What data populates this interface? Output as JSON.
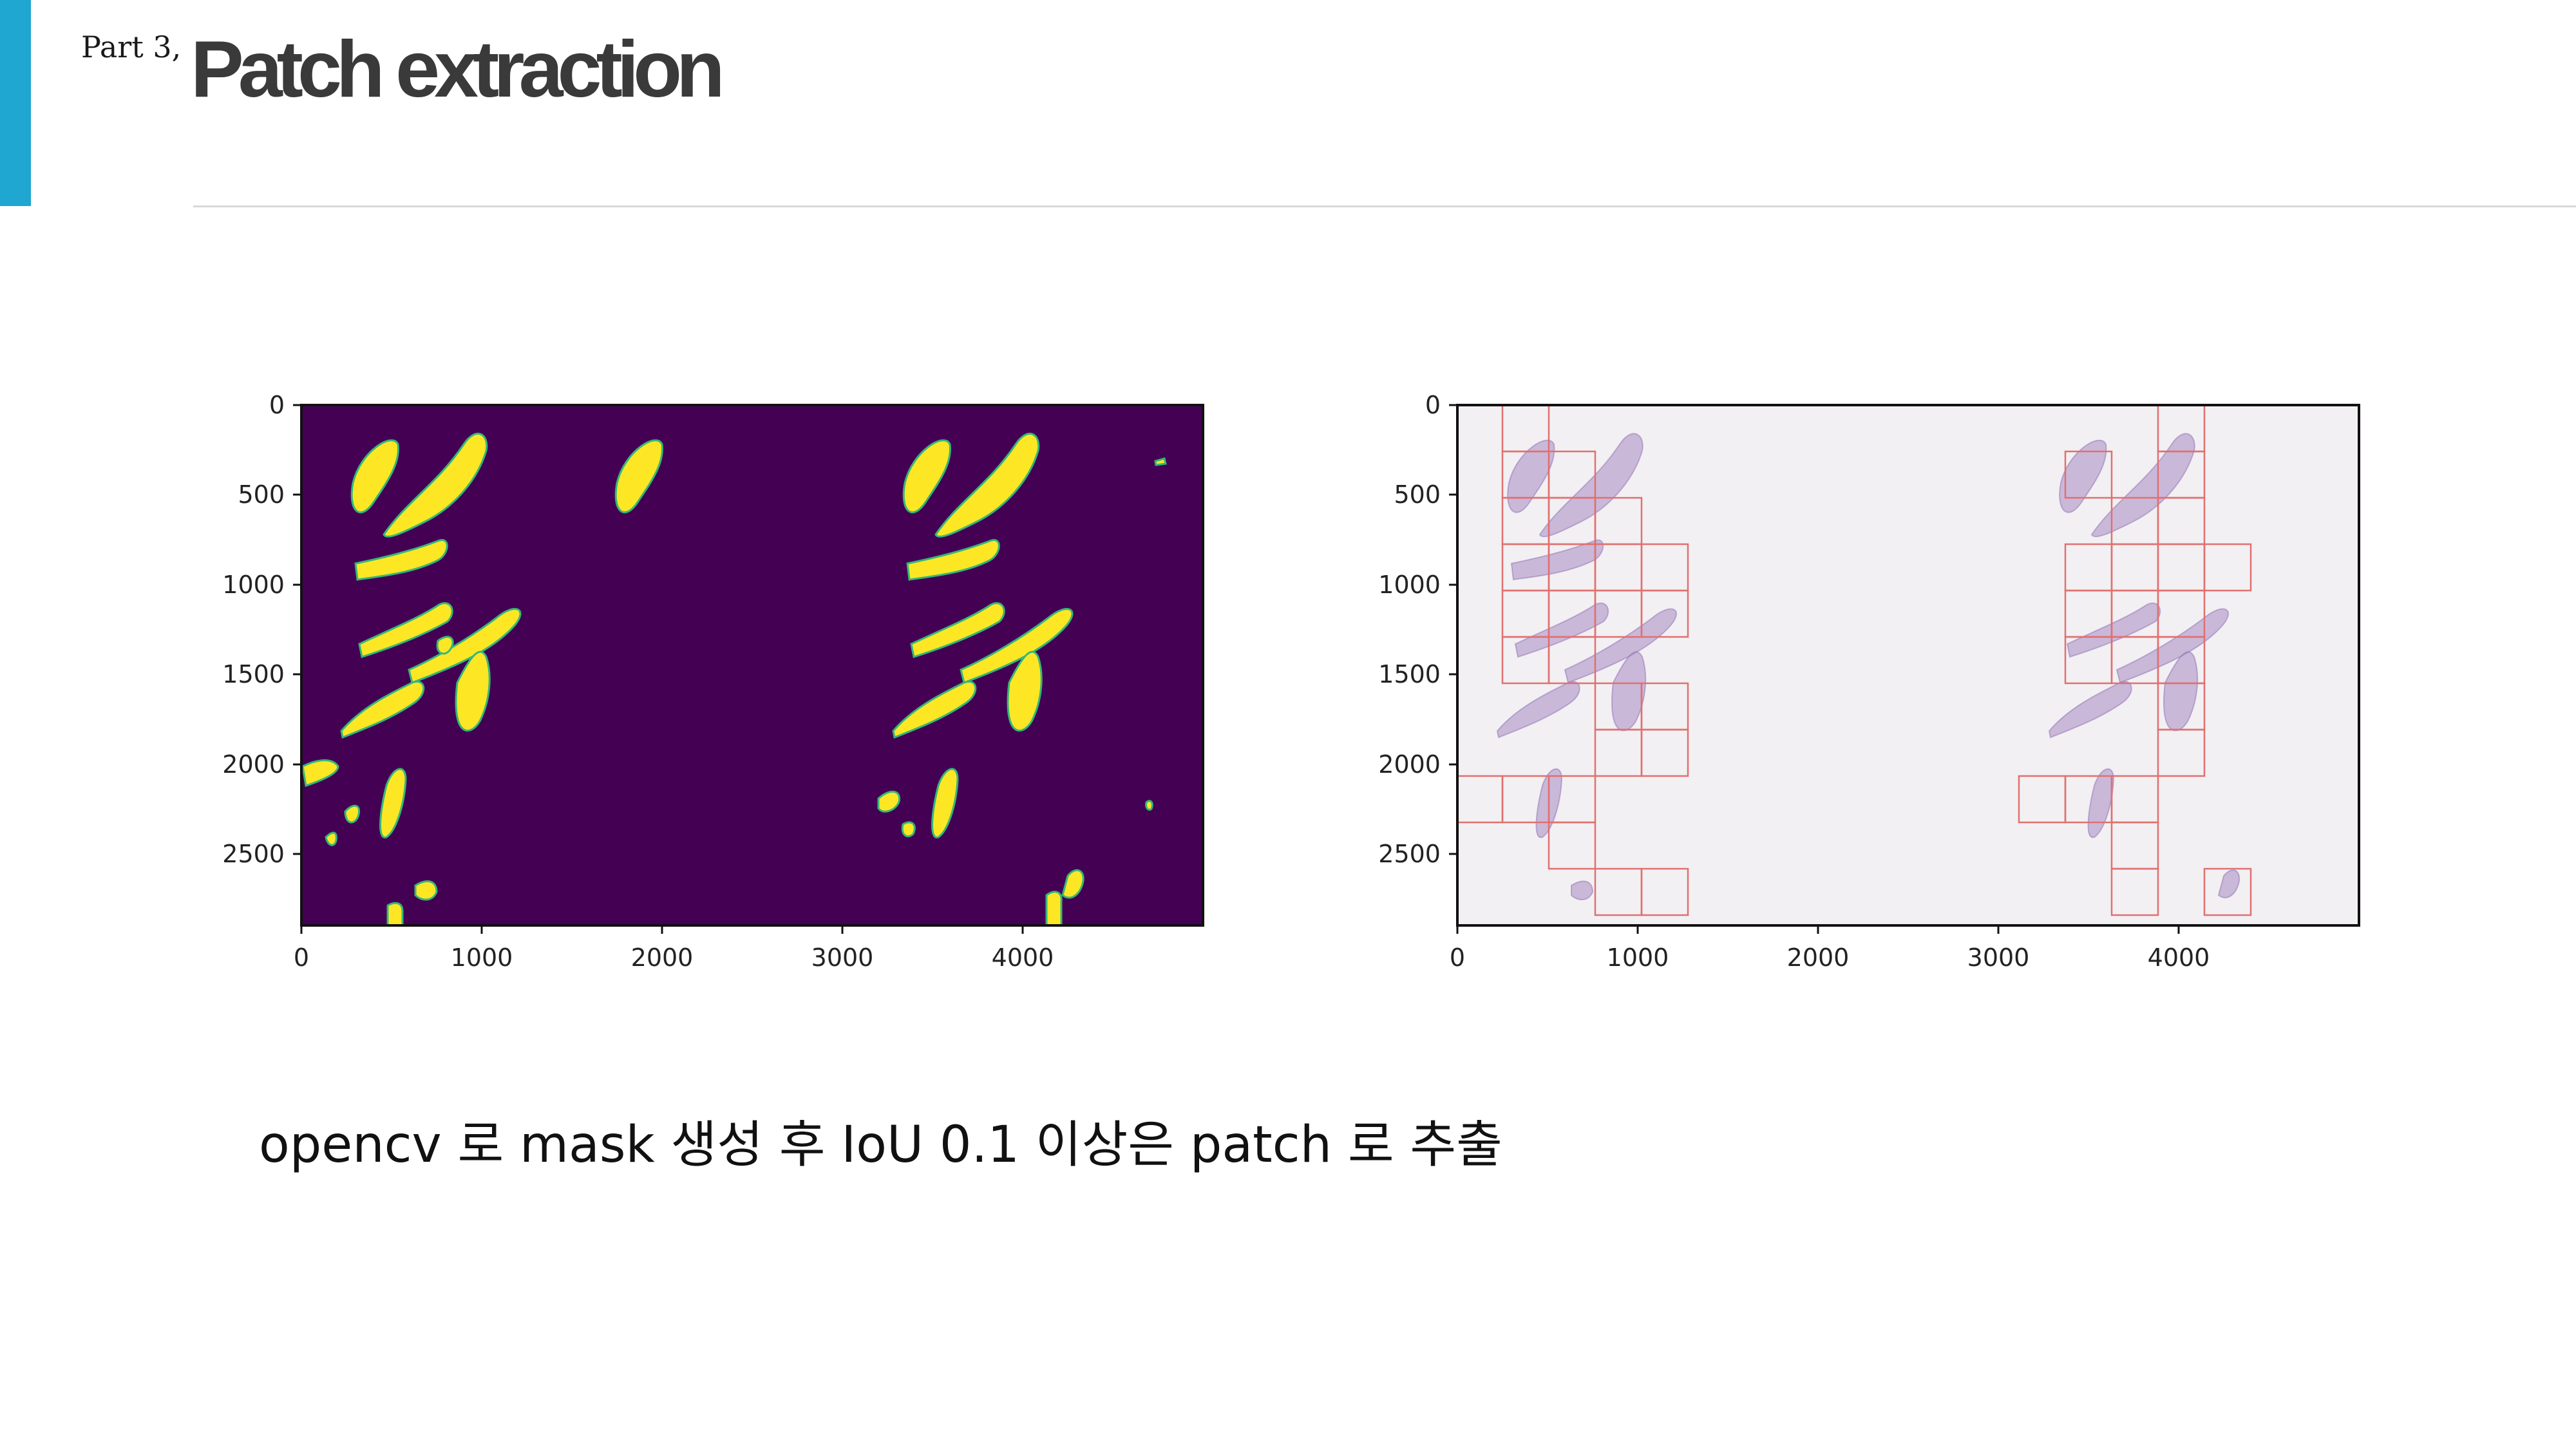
{
  "header": {
    "part_label": "Part 3,",
    "title": "Patch extraction",
    "accent_color": "#1fa6d1"
  },
  "caption": "opencv 로 mask 생성 후 IoU 0.1 이상은 patch 로 추출",
  "chart_data": [
    {
      "type": "image",
      "name": "mask",
      "xlim": [
        0,
        5000
      ],
      "ylim": [
        2900,
        0
      ],
      "x_ticks": [
        "0",
        "1000",
        "2000",
        "3000",
        "4000"
      ],
      "y_ticks": [
        "0",
        "500",
        "1000",
        "1500",
        "2000",
        "2500"
      ],
      "background_color": "#440154",
      "foreground_color": "#fde725"
    },
    {
      "type": "image",
      "name": "tissue-patches",
      "xlim": [
        0,
        5000
      ],
      "ylim": [
        2900,
        0
      ],
      "x_ticks": [
        "0",
        "1000",
        "2000",
        "3000",
        "4000"
      ],
      "y_ticks": [
        "0",
        "500",
        "1000",
        "1500",
        "2000",
        "2500"
      ],
      "background_color": "#f2f0f2",
      "tissue_color": "#a98ac4",
      "patch_box_color": "#e07070"
    }
  ]
}
